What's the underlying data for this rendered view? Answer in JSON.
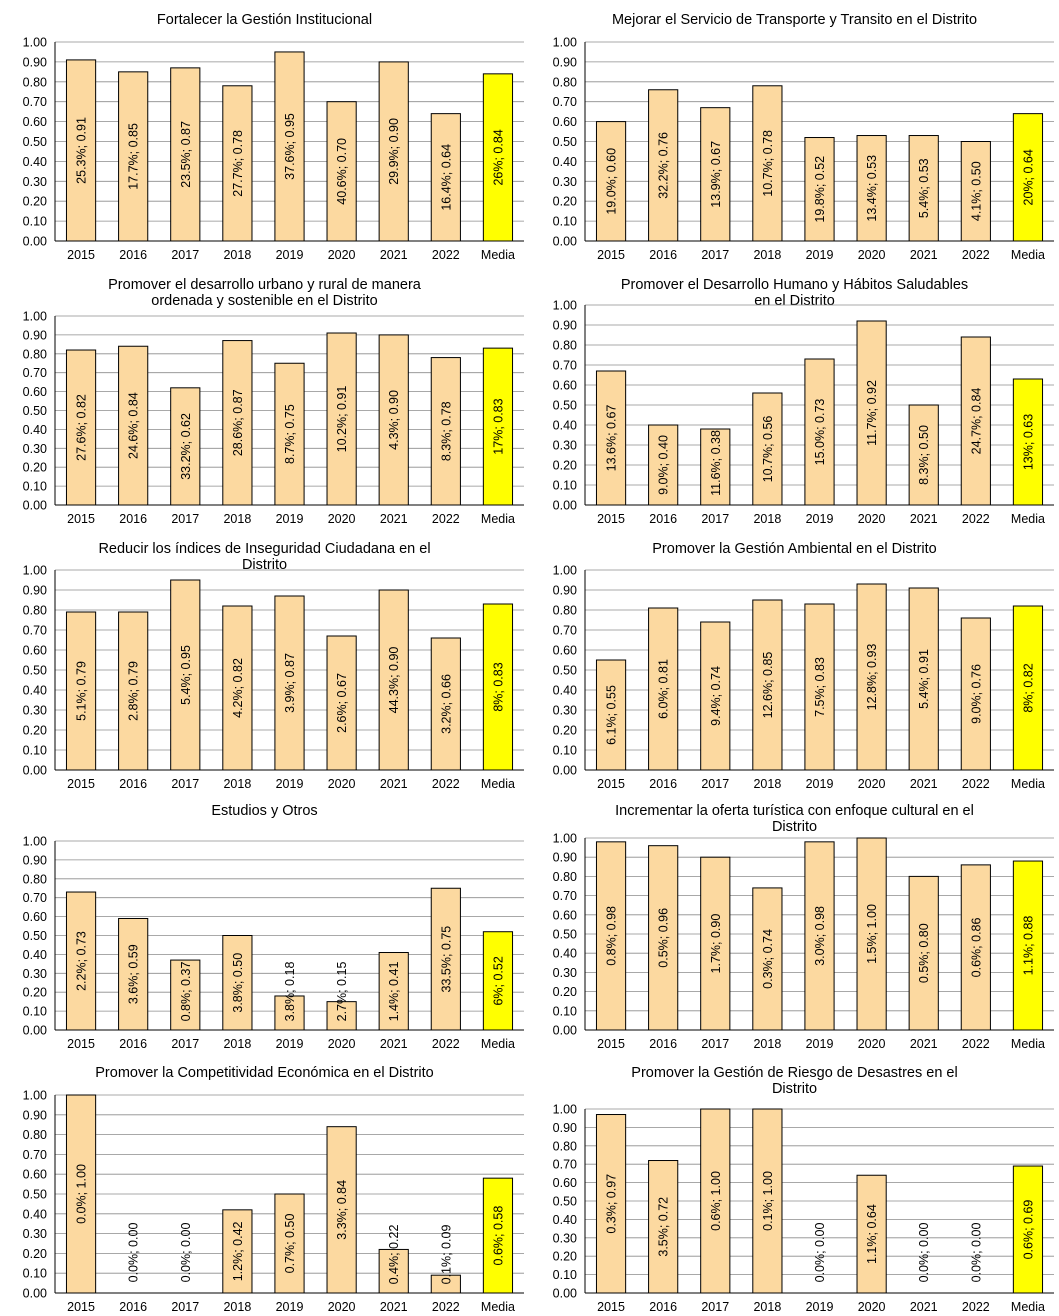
{
  "chart_data": [
    {
      "type": "bar",
      "title": "Fortalecer la Gestión Institucional",
      "categories": [
        "2015",
        "2016",
        "2017",
        "2018",
        "2019",
        "2020",
        "2021",
        "2022",
        "Media"
      ],
      "values": [
        0.91,
        0.85,
        0.87,
        0.78,
        0.95,
        0.7,
        0.9,
        0.64,
        0.84
      ],
      "data_labels": [
        "25.3%; 0.91",
        "17.7%; 0.85",
        "23.5%; 0.87",
        "27.7%; 0.78",
        "37.6%; 0.95",
        "40.6%; 0.70",
        "29.9%; 0.90",
        "16.4%; 0.64",
        "26%; 0.84"
      ],
      "ylim": [
        0,
        1.0
      ],
      "yticks": [
        "0.00",
        "0.10",
        "0.20",
        "0.30",
        "0.40",
        "0.50",
        "0.60",
        "0.70",
        "0.80",
        "0.90",
        "1.00"
      ],
      "grid": true,
      "colors": {
        "bar": "#FCD9A0",
        "media": "#FFFF00",
        "stroke": "#000000",
        "grid": "#8C8C8C"
      }
    },
    {
      "type": "bar",
      "title": "Mejorar el Servicio de Transporte y Transito en el Distrito",
      "categories": [
        "2015",
        "2016",
        "2017",
        "2018",
        "2019",
        "2020",
        "2021",
        "2022",
        "Media"
      ],
      "values": [
        0.6,
        0.76,
        0.67,
        0.78,
        0.52,
        0.53,
        0.53,
        0.5,
        0.64
      ],
      "data_labels": [
        "19.0%; 0.60",
        "32.2%; 0.76",
        "13.9%; 0.67",
        "10.7%; 0.78",
        "19.8%; 0.52",
        "13.4%; 0.53",
        "5.4%; 0.53",
        "4.1%; 0.50",
        "20%; 0.64"
      ],
      "ylim": [
        0,
        1.0
      ],
      "yticks": [
        "0.00",
        "0.10",
        "0.20",
        "0.30",
        "0.40",
        "0.50",
        "0.60",
        "0.70",
        "0.80",
        "0.90",
        "1.00"
      ],
      "grid": true,
      "colors": {
        "bar": "#FCD9A0",
        "media": "#FFFF00",
        "stroke": "#000000",
        "grid": "#8C8C8C"
      }
    },
    {
      "type": "bar",
      "title": "Promover el desarrollo urbano y rural de manera\nordenada y sostenible en el Distrito",
      "categories": [
        "2015",
        "2016",
        "2017",
        "2018",
        "2019",
        "2020",
        "2021",
        "2022",
        "Media"
      ],
      "values": [
        0.82,
        0.84,
        0.62,
        0.87,
        0.75,
        0.91,
        0.9,
        0.78,
        0.83
      ],
      "data_labels": [
        "27.6%; 0.82",
        "24.6%; 0.84",
        "33.2%; 0.62",
        "28.6%; 0.87",
        "8.7%; 0.75",
        "10.2%; 0.91",
        "4.3%; 0.90",
        "8.3%; 0.78",
        "17%; 0.83"
      ],
      "ylim": [
        0,
        1.0
      ],
      "yticks": [
        "0.00",
        "0.10",
        "0.20",
        "0.30",
        "0.40",
        "0.50",
        "0.60",
        "0.70",
        "0.80",
        "0.90",
        "1.00"
      ],
      "grid": true,
      "colors": {
        "bar": "#FCD9A0",
        "media": "#FFFF00",
        "stroke": "#000000",
        "grid": "#8C8C8C"
      }
    },
    {
      "type": "bar",
      "title": "Promover el Desarrollo Humano y Hábitos Saludables\nen el Distrito",
      "categories": [
        "2015",
        "2016",
        "2017",
        "2018",
        "2019",
        "2020",
        "2021",
        "2022",
        "Media"
      ],
      "values": [
        0.67,
        0.4,
        0.38,
        0.56,
        0.73,
        0.92,
        0.5,
        0.84,
        0.63
      ],
      "data_labels": [
        "13.6%; 0.67",
        "9.0%; 0.40",
        "11.6%; 0.38",
        "10.7%; 0.56",
        "15.0%; 0.73",
        "11.7%; 0.92",
        "8.3%; 0.50",
        "24.7%; 0.84",
        "13%; 0.63"
      ],
      "ylim": [
        0,
        1.0
      ],
      "yticks": [
        "0.00",
        "0.10",
        "0.20",
        "0.30",
        "0.40",
        "0.50",
        "0.60",
        "0.70",
        "0.80",
        "0.90",
        "1.00"
      ],
      "grid": true,
      "colors": {
        "bar": "#FCD9A0",
        "media": "#FFFF00",
        "stroke": "#000000",
        "grid": "#8C8C8C"
      }
    },
    {
      "type": "bar",
      "title": "Reducir los índices de Inseguridad Ciudadana en el\nDistrito",
      "categories": [
        "2015",
        "2016",
        "2017",
        "2018",
        "2019",
        "2020",
        "2021",
        "2022",
        "Media"
      ],
      "values": [
        0.79,
        0.79,
        0.95,
        0.82,
        0.87,
        0.67,
        0.9,
        0.66,
        0.83
      ],
      "data_labels": [
        "5.1%; 0.79",
        "2.8%; 0.79",
        "5.4%; 0.95",
        "4.2%; 0.82",
        "3.9%; 0.87",
        "2.6%; 0.67",
        "44.3%; 0.90",
        "3.2%; 0.66",
        "8%; 0.83"
      ],
      "ylim": [
        0,
        1.0
      ],
      "yticks": [
        "0.00",
        "0.10",
        "0.20",
        "0.30",
        "0.40",
        "0.50",
        "0.60",
        "0.70",
        "0.80",
        "0.90",
        "1.00"
      ],
      "grid": true,
      "colors": {
        "bar": "#FCD9A0",
        "media": "#FFFF00",
        "stroke": "#000000",
        "grid": "#8C8C8C"
      }
    },
    {
      "type": "bar",
      "title": "Promover la Gestión Ambiental en el Distrito",
      "categories": [
        "2015",
        "2016",
        "2017",
        "2018",
        "2019",
        "2020",
        "2021",
        "2022",
        "Media"
      ],
      "values": [
        0.55,
        0.81,
        0.74,
        0.85,
        0.83,
        0.93,
        0.91,
        0.76,
        0.82
      ],
      "data_labels": [
        "6.1%; 0.55",
        "6.0%; 0.81",
        "9.4%; 0.74",
        "12.6%; 0.85",
        "7.5%; 0.83",
        "12.8%; 0.93",
        "5.4%; 0.91",
        "9.0%; 0.76",
        "8%; 0.82"
      ],
      "ylim": [
        0,
        1.0
      ],
      "yticks": [
        "0.00",
        "0.10",
        "0.20",
        "0.30",
        "0.40",
        "0.50",
        "0.60",
        "0.70",
        "0.80",
        "0.90",
        "1.00"
      ],
      "grid": true,
      "colors": {
        "bar": "#FCD9A0",
        "media": "#FFFF00",
        "stroke": "#000000",
        "grid": "#8C8C8C"
      }
    },
    {
      "type": "bar",
      "title": "Estudios y Otros",
      "categories": [
        "2015",
        "2016",
        "2017",
        "2018",
        "2019",
        "2020",
        "2021",
        "2022",
        "Media"
      ],
      "values": [
        0.73,
        0.59,
        0.37,
        0.5,
        0.18,
        0.15,
        0.41,
        0.75,
        0.52
      ],
      "data_labels": [
        "2.2%; 0.73",
        "3.6%; 0.59",
        "0.8%; 0.37",
        "3.8%; 0.50",
        "3.8%; 0.18",
        "2.7%; 0.15",
        "1.4%; 0.41",
        "33.5%; 0.75",
        "6%; 0.52"
      ],
      "ylim": [
        0,
        1.0
      ],
      "yticks": [
        "0.00",
        "0.10",
        "0.20",
        "0.30",
        "0.40",
        "0.50",
        "0.60",
        "0.70",
        "0.80",
        "0.90",
        "1.00"
      ],
      "grid": true,
      "colors": {
        "bar": "#FCD9A0",
        "media": "#FFFF00",
        "stroke": "#000000",
        "grid": "#8C8C8C"
      }
    },
    {
      "type": "bar",
      "title": "Incrementar la oferta turística con enfoque cultural en el\nDistrito",
      "categories": [
        "2015",
        "2016",
        "2017",
        "2018",
        "2019",
        "2020",
        "2021",
        "2022",
        "Media"
      ],
      "values": [
        0.98,
        0.96,
        0.9,
        0.74,
        0.98,
        1.0,
        0.8,
        0.86,
        0.88
      ],
      "data_labels": [
        "0.8%; 0.98",
        "0.5%; 0.96",
        "1.7%; 0.90",
        "0.3%; 0.74",
        "3.0%; 0.98",
        "1.5%; 1.00",
        "0.5%; 0.80",
        "0.6%; 0.86",
        "1.1%; 0.88"
      ],
      "ylim": [
        0,
        1.0
      ],
      "yticks": [
        "0.00",
        "0.10",
        "0.20",
        "0.30",
        "0.40",
        "0.50",
        "0.60",
        "0.70",
        "0.80",
        "0.90",
        "1.00"
      ],
      "grid": true,
      "colors": {
        "bar": "#FCD9A0",
        "media": "#FFFF00",
        "stroke": "#000000",
        "grid": "#8C8C8C"
      }
    },
    {
      "type": "bar",
      "title": "Promover la Competitividad Económica en el Distrito",
      "categories": [
        "2015",
        "2016",
        "2017",
        "2018",
        "2019",
        "2020",
        "2021",
        "2022",
        "Media"
      ],
      "values": [
        1.0,
        0.0,
        0.0,
        0.42,
        0.5,
        0.84,
        0.22,
        0.09,
        0.58
      ],
      "data_labels": [
        "0.0%; 1.00",
        "0.0%; 0.00",
        "0.0%; 0.00",
        "1.2%; 0.42",
        "0.7%; 0.50",
        "3.3%; 0.84",
        "0.4%; 0.22",
        "0.1%; 0.09",
        "0.6%; 0.58"
      ],
      "ylim": [
        0,
        1.0
      ],
      "yticks": [
        "0.00",
        "0.10",
        "0.20",
        "0.30",
        "0.40",
        "0.50",
        "0.60",
        "0.70",
        "0.80",
        "0.90",
        "1.00"
      ],
      "grid": true,
      "colors": {
        "bar": "#FCD9A0",
        "media": "#FFFF00",
        "stroke": "#000000",
        "grid": "#8C8C8C"
      }
    },
    {
      "type": "bar",
      "title": "Promover la Gestión de Riesgo de Desastres en el\nDistrito",
      "categories": [
        "2015",
        "2016",
        "2017",
        "2018",
        "2019",
        "2020",
        "2021",
        "2022",
        "Media"
      ],
      "values": [
        0.97,
        0.72,
        1.0,
        1.0,
        0.0,
        0.64,
        0.0,
        0.0,
        0.69
      ],
      "data_labels": [
        "0.3%; 0.97",
        "3.5%; 0.72",
        "0.6%; 1.00",
        "0.1%; 1.00",
        "0.0%; 0.00",
        "1.1%; 0.64",
        "0.0%; 0.00",
        "0.0%; 0.00",
        "0.6%; 0.69"
      ],
      "ylim": [
        0,
        1.0
      ],
      "yticks": [
        "0.00",
        "0.10",
        "0.20",
        "0.30",
        "0.40",
        "0.50",
        "0.60",
        "0.70",
        "0.80",
        "0.90",
        "1.00"
      ],
      "grid": true,
      "colors": {
        "bar": "#FCD9A0",
        "media": "#FFFF00",
        "stroke": "#000000",
        "grid": "#8C8C8C"
      }
    }
  ]
}
